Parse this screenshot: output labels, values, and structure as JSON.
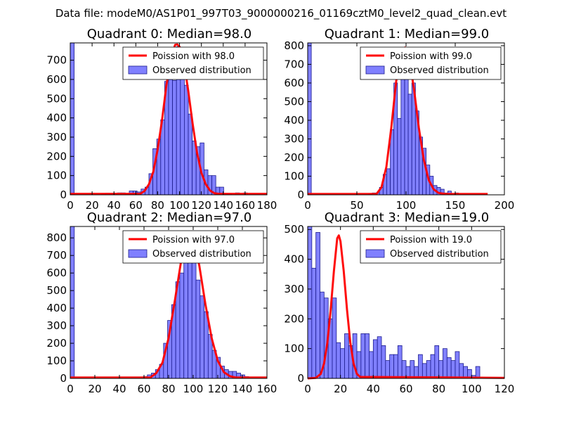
{
  "suptitle": "Data file: modeM0/AS1P01_997T03_9000000216_01169cztM0_level2_quad_clean.evt",
  "colors": {
    "bar_fill": "#8080ff",
    "bar_stroke": "#1c1c8c",
    "fit_line": "#ff0000",
    "axes": "#000000",
    "background": "#ffffff"
  },
  "legend": {
    "poisson_prefix": "Poission with ",
    "observed_label": "Observed distribution"
  },
  "chart_data": [
    {
      "type": "bar",
      "title": "Quadrant 0: Median=98.0",
      "median": 98.0,
      "poisson_label": "Poission with 98.0",
      "observed_label": "Observed distribution",
      "legend_position": "upper-right",
      "xlim": [
        0,
        180
      ],
      "ylim": [
        0,
        790
      ],
      "xticks": [
        0,
        20,
        40,
        60,
        80,
        100,
        120,
        140,
        160,
        180
      ],
      "xtick_labels": [
        "0",
        "20",
        "40",
        "60",
        "80",
        "100",
        "120",
        "140",
        "160",
        "180"
      ],
      "yticks": [
        0,
        100,
        200,
        300,
        400,
        500,
        600,
        700
      ],
      "ytick_labels": [
        "0",
        "100",
        "200",
        "300",
        "400",
        "500",
        "600",
        "700"
      ],
      "bin_width": 3.6,
      "bin_starts": [
        0,
        28.8,
        32.4,
        36,
        39.6,
        43.2,
        46.8,
        50.4,
        54,
        57.6,
        61.2,
        64.8,
        68.4,
        72,
        75.6,
        79.2,
        82.8,
        86.4,
        90,
        93.6,
        97.2,
        100.8,
        104.4,
        108,
        111.6,
        115.2,
        118.8,
        122.4,
        126,
        129.6,
        133.2,
        136.8,
        140.4,
        144,
        147.6,
        151.2,
        154.8,
        158.4,
        162
      ],
      "counts": [
        790,
        5,
        8,
        5,
        5,
        10,
        10,
        5,
        20,
        20,
        15,
        30,
        40,
        110,
        240,
        290,
        390,
        590,
        640,
        595,
        770,
        670,
        570,
        420,
        280,
        250,
        270,
        130,
        100,
        100,
        40,
        40,
        5,
        5,
        0,
        10,
        0,
        10,
        0
      ],
      "poisson_curve": {
        "x": [
          0,
          64,
          68,
          72,
          76,
          80,
          84,
          88,
          92,
          96,
          98,
          100,
          104,
          108,
          112,
          116,
          120,
          124,
          128,
          132,
          136,
          180
        ],
        "y": [
          5,
          5,
          20,
          55,
          120,
          235,
          390,
          570,
          710,
          780,
          782,
          770,
          690,
          540,
          370,
          220,
          115,
          55,
          22,
          8,
          5,
          5
        ]
      }
    },
    {
      "type": "bar",
      "title": "Quadrant 1: Median=99.0",
      "median": 99.0,
      "poisson_label": "Poission with 99.0",
      "observed_label": "Observed distribution",
      "legend_position": "upper-right",
      "xlim": [
        0,
        200
      ],
      "ylim": [
        0,
        815
      ],
      "xticks": [
        0,
        50,
        100,
        150,
        200
      ],
      "xtick_labels": [
        "0",
        "50",
        "100",
        "150",
        "200"
      ],
      "yticks": [
        0,
        100,
        200,
        300,
        400,
        500,
        600,
        700,
        800
      ],
      "ytick_labels": [
        "0",
        "100",
        "200",
        "300",
        "400",
        "500",
        "600",
        "700",
        "800"
      ],
      "bin_width": 3.65,
      "bin_starts": [
        0,
        62.1,
        65.7,
        69.4,
        73,
        76.7,
        80.3,
        84,
        87.6,
        91.3,
        94.9,
        98.6,
        102.2,
        105.9,
        109.5,
        113.2,
        116.8,
        120.5,
        124.1,
        127.8,
        131.4,
        135.1,
        138.7,
        142.4,
        146,
        149.7
      ],
      "counts": [
        815,
        5,
        10,
        10,
        40,
        110,
        140,
        350,
        600,
        410,
        700,
        760,
        540,
        600,
        450,
        310,
        250,
        160,
        100,
        50,
        40,
        30,
        10,
        20,
        0,
        10
      ],
      "poisson_curve": {
        "x": [
          0,
          70,
          75,
          80,
          85,
          90,
          95,
          99,
          103,
          108,
          113,
          118,
          123,
          128,
          133,
          140,
          183
        ],
        "y": [
          5,
          5,
          40,
          150,
          360,
          610,
          770,
          790,
          740,
          570,
          360,
          190,
          80,
          30,
          10,
          5,
          5
        ]
      }
    },
    {
      "type": "bar",
      "title": "Quadrant 2: Median=97.0",
      "median": 97.0,
      "poisson_label": "Poission with 97.0",
      "observed_label": "Observed distribution",
      "legend_position": "upper-right",
      "xlim": [
        0,
        160
      ],
      "ylim": [
        0,
        865
      ],
      "xticks": [
        0,
        20,
        40,
        60,
        80,
        100,
        120,
        140,
        160
      ],
      "xtick_labels": [
        "0",
        "20",
        "40",
        "60",
        "80",
        "100",
        "120",
        "140",
        "160"
      ],
      "yticks": [
        0,
        100,
        200,
        300,
        400,
        500,
        600,
        700,
        800
      ],
      "ytick_labels": [
        "0",
        "100",
        "200",
        "300",
        "400",
        "500",
        "600",
        "700",
        "800"
      ],
      "bin_width": 3.3,
      "bin_starts": [
        0,
        49.5,
        52.8,
        56.1,
        59.4,
        62.7,
        66,
        69.3,
        72.6,
        75.9,
        79.2,
        82.5,
        85.8,
        89.1,
        92.4,
        95.7,
        99,
        102.3,
        105.6,
        108.9,
        112.2,
        115.5,
        118.8,
        122.1,
        125.4,
        128.7,
        132,
        135.3,
        138.6,
        141.9,
        145.2
      ],
      "counts": [
        865,
        5,
        5,
        5,
        10,
        20,
        30,
        50,
        80,
        200,
        330,
        420,
        550,
        600,
        720,
        760,
        660,
        560,
        470,
        380,
        250,
        160,
        120,
        70,
        50,
        40,
        40,
        30,
        20,
        10,
        0
      ],
      "poisson_curve": {
        "x": [
          0,
          65,
          70,
          75,
          80,
          85,
          90,
          95,
          97,
          100,
          105,
          110,
          115,
          120,
          125,
          130,
          135,
          160
        ],
        "y": [
          5,
          5,
          30,
          90,
          230,
          440,
          660,
          810,
          830,
          800,
          640,
          420,
          230,
          100,
          35,
          12,
          5,
          5
        ]
      }
    },
    {
      "type": "bar",
      "title": "Quadrant 3: Median=19.0",
      "median": 19.0,
      "poisson_label": "Poission with 19.0",
      "observed_label": "Observed distribution",
      "legend_position": "upper-right",
      "xlim": [
        0,
        120
      ],
      "ylim": [
        0,
        510
      ],
      "xticks": [
        0,
        20,
        40,
        60,
        80,
        100,
        120
      ],
      "xtick_labels": [
        "0",
        "20",
        "40",
        "60",
        "80",
        "100",
        "120"
      ],
      "yticks": [
        0,
        100,
        200,
        300,
        400,
        500
      ],
      "ytick_labels": [
        "0",
        "100",
        "200",
        "300",
        "400",
        "500"
      ],
      "bin_width": 2.5,
      "bin_starts": [
        0,
        2.5,
        5,
        7.5,
        10,
        12.5,
        15,
        17.5,
        20,
        22.5,
        25,
        27.5,
        30,
        32.5,
        35,
        37.5,
        40,
        42.5,
        45,
        47.5,
        50,
        52.5,
        55,
        57.5,
        60,
        62.5,
        65,
        67.5,
        70,
        72.5,
        75,
        77.5,
        80,
        82.5,
        85,
        87.5,
        90,
        92.5,
        95,
        97.5,
        100,
        102.5,
        105
      ],
      "counts": [
        510,
        370,
        490,
        290,
        270,
        200,
        270,
        120,
        100,
        150,
        110,
        150,
        90,
        150,
        150,
        90,
        130,
        140,
        110,
        60,
        80,
        80,
        110,
        60,
        40,
        60,
        40,
        80,
        50,
        60,
        80,
        110,
        60,
        100,
        70,
        60,
        90,
        50,
        40,
        30,
        10,
        40,
        0
      ],
      "poisson_curve": {
        "x": [
          0,
          5,
          8,
          10,
          12,
          14,
          16,
          18,
          19,
          20,
          22,
          24,
          26,
          28,
          30,
          32,
          120
        ],
        "y": [
          0,
          2,
          15,
          50,
          120,
          230,
          360,
          470,
          480,
          460,
          360,
          230,
          120,
          50,
          15,
          5,
          2
        ]
      }
    }
  ]
}
